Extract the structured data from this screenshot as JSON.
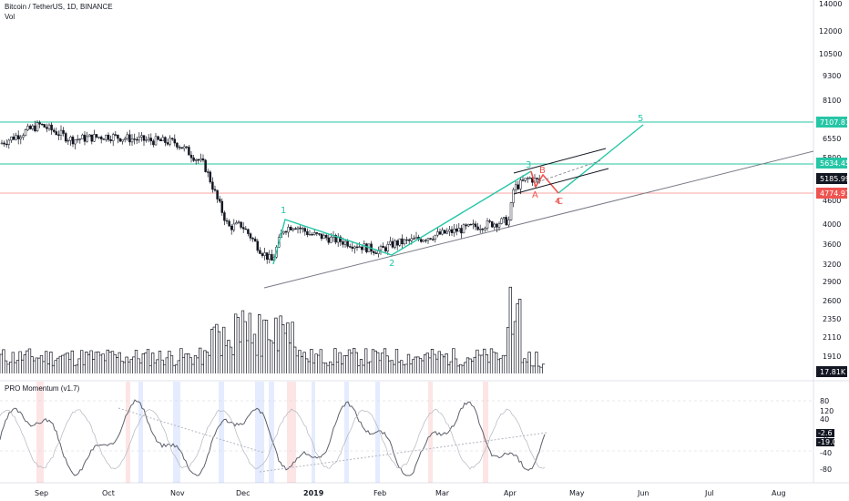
{
  "header": {
    "symbol": "Bitcoin / TetherUS, 1D, BINANCE",
    "vol_label": "Vol"
  },
  "indicator": {
    "title": "PRO Momentum (v1.7)",
    "axis_ticks": [
      120,
      80,
      40,
      0,
      -40,
      -80
    ],
    "value_tags": [
      "-2.6",
      "-19.0"
    ]
  },
  "price_tags": [
    {
      "label": "7107.81",
      "color": "#26c6a6"
    },
    {
      "label": "5634.45",
      "color": "#26c6a6"
    },
    {
      "label": "5185.99",
      "color": "#131722"
    },
    {
      "label": "4774.97",
      "color": "#ef5350"
    }
  ],
  "volume_tag": {
    "label": "17.81K",
    "color": "#131722"
  },
  "price_axis_ticks": [
    14000,
    12000,
    10500,
    9300,
    8100,
    6550,
    5800,
    4600,
    4000,
    3600,
    3200,
    2900,
    2600,
    2350,
    2110,
    1910
  ],
  "time_axis_labels": [
    "Sep",
    "Oct",
    "Nov",
    "Dec",
    "2019",
    "Feb",
    "Mar",
    "Apr",
    "May",
    "Jun",
    "Jul",
    "Aug"
  ],
  "wave_labels": [
    {
      "text": "1",
      "color": "#26c6a6"
    },
    {
      "text": "2",
      "color": "#26c6a6"
    },
    {
      "text": "3",
      "color": "#26c6a6"
    },
    {
      "text": "4",
      "color": "#ef5350"
    },
    {
      "text": "5",
      "color": "#26c6a6"
    },
    {
      "text": "A",
      "color": "#ef5350"
    },
    {
      "text": "B",
      "color": "#ef5350"
    },
    {
      "text": "C",
      "color": "#ef5350"
    }
  ],
  "colors": {
    "accent_teal": "#26c6a6",
    "bearish_red": "#ef5350",
    "candles": "#131722",
    "trendline": "#787b86",
    "highlight_red": "rgba(239,83,80,0.15)",
    "highlight_blue": "rgba(41,98,255,0.12)"
  },
  "chart_data": {
    "type": "candlestick",
    "scale": "log",
    "grid": false,
    "price_series": {
      "dates": [
        "2018-08-15",
        "2018-09-01",
        "2018-09-15",
        "2018-10-01",
        "2018-10-15",
        "2018-11-01",
        "2018-11-14",
        "2018-11-20",
        "2018-11-25",
        "2018-12-01",
        "2018-12-10",
        "2018-12-15",
        "2018-12-20",
        "2018-12-25",
        "2019-01-01",
        "2019-01-15",
        "2019-02-01",
        "2019-02-08",
        "2019-02-15",
        "2019-03-01",
        "2019-03-15",
        "2019-04-01",
        "2019-04-03",
        "2019-04-10",
        "2019-04-15"
      ],
      "close": [
        6300,
        7000,
        6450,
        6580,
        6450,
        6350,
        5600,
        4600,
        3950,
        4000,
        3450,
        3250,
        3900,
        4000,
        3800,
        3650,
        3450,
        3600,
        3650,
        3800,
        3950,
        4100,
        4900,
        5200,
        5100
      ]
    },
    "horizontal_levels": [
      7107.81,
      5634.45,
      4774.97
    ],
    "last_price": 5185.99,
    "volume_last": "17.81K",
    "momentum": {
      "ylim": [
        -100,
        130
      ],
      "last_values": [
        -2.6,
        -19.0
      ]
    }
  }
}
